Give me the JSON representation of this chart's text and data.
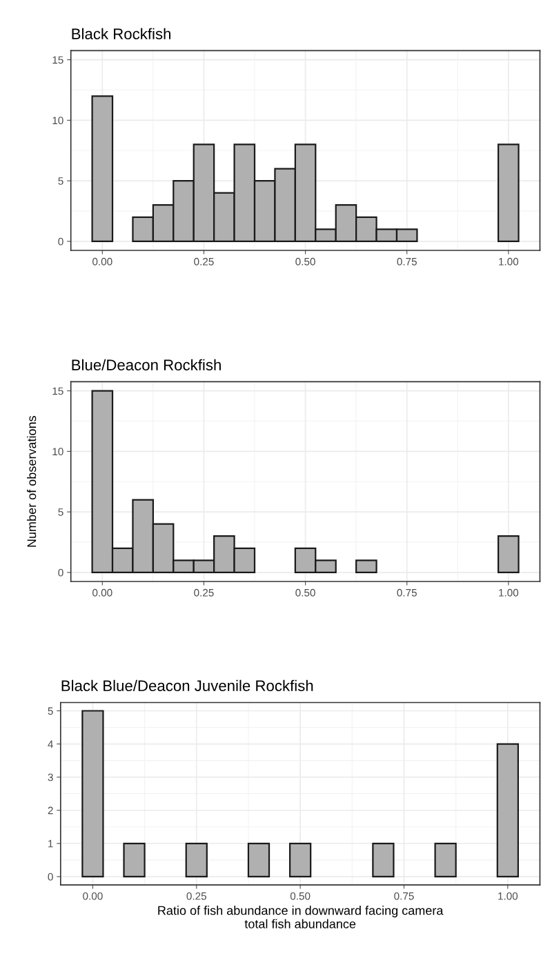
{
  "chart_data": [
    {
      "type": "histogram",
      "title": "Black Rockfish",
      "bins": [
        -0.025,
        0.025,
        0.075,
        0.125,
        0.175,
        0.225,
        0.275,
        0.325,
        0.375,
        0.425,
        0.475,
        0.525,
        0.575,
        0.625,
        0.675,
        0.725,
        0.775,
        0.825,
        0.875,
        0.925,
        0.975,
        1.025
      ],
      "values": [
        12,
        0,
        2,
        3,
        5,
        8,
        4,
        8,
        5,
        6,
        8,
        1,
        3,
        2,
        1,
        1,
        0,
        0,
        0,
        0,
        8
      ],
      "color": "#b0b0b0",
      "xlim": [
        -0.0775,
        1.0775
      ],
      "xticks": [
        {
          "value": 0,
          "label": "0.00"
        },
        {
          "value": 0.25,
          "label": "0.25"
        },
        {
          "value": 0.5,
          "label": "0.50"
        },
        {
          "value": 0.75,
          "label": "0.75"
        },
        {
          "value": 1,
          "label": "1.00"
        }
      ],
      "ylim": [
        -0.75,
        15.75
      ],
      "yticks": [
        0,
        5,
        10,
        15
      ],
      "grid": true
    },
    {
      "type": "histogram",
      "title": "Blue/Deacon Rockfish",
      "ylabel": "Number of observations",
      "bins": [
        -0.025,
        0.025,
        0.075,
        0.125,
        0.175,
        0.225,
        0.275,
        0.325,
        0.375,
        0.425,
        0.475,
        0.525,
        0.575,
        0.625,
        0.675,
        0.725,
        0.775,
        0.825,
        0.875,
        0.925,
        0.975,
        1.025
      ],
      "values": [
        15,
        2,
        6,
        4,
        1,
        1,
        3,
        2,
        0,
        0,
        2,
        1,
        0,
        1,
        0,
        0,
        0,
        0,
        0,
        0,
        3
      ],
      "color": "#b0b0b0",
      "xlim": [
        -0.0775,
        1.0775
      ],
      "xticks": [
        {
          "value": 0,
          "label": "0.00"
        },
        {
          "value": 0.25,
          "label": "0.25"
        },
        {
          "value": 0.5,
          "label": "0.50"
        },
        {
          "value": 0.75,
          "label": "0.75"
        },
        {
          "value": 1,
          "label": "1.00"
        }
      ],
      "ylim": [
        -0.75,
        15.75
      ],
      "yticks": [
        0,
        5,
        10,
        15
      ],
      "grid": true
    },
    {
      "type": "histogram",
      "title": "Black Blue/Deacon Juvenile Rockfish",
      "xlabel": "Ratio of fish abundance in downward facing camera\ntotal fish abundance",
      "bins": [
        -0.025,
        0.025,
        0.075,
        0.125,
        0.175,
        0.225,
        0.275,
        0.325,
        0.375,
        0.425,
        0.475,
        0.525,
        0.575,
        0.625,
        0.675,
        0.725,
        0.775,
        0.825,
        0.875,
        0.925,
        0.975,
        1.025
      ],
      "values": [
        5,
        0,
        1,
        0,
        0,
        1,
        0,
        0,
        1,
        0,
        1,
        0,
        0,
        0,
        1,
        0,
        0,
        1,
        0,
        0,
        4
      ],
      "color": "#b0b0b0",
      "xlim": [
        -0.0775,
        1.0775
      ],
      "xticks": [
        {
          "value": 0,
          "label": "0.00"
        },
        {
          "value": 0.25,
          "label": "0.25"
        },
        {
          "value": 0.5,
          "label": "0.50"
        },
        {
          "value": 0.75,
          "label": "0.75"
        },
        {
          "value": 1,
          "label": "1.00"
        }
      ],
      "ylim": [
        -0.25,
        5.25
      ],
      "yticks": [
        0,
        1,
        2,
        3,
        4,
        5
      ],
      "grid": true
    }
  ]
}
